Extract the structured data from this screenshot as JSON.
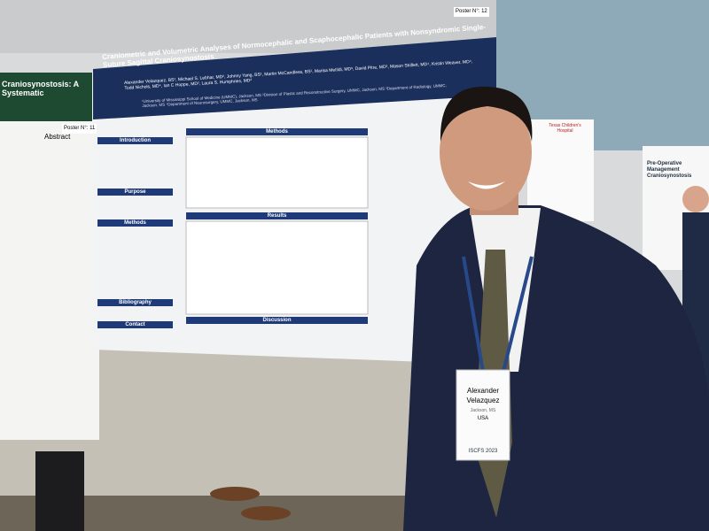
{
  "posters": {
    "center": {
      "number": "Poster N°: 12",
      "title": "Craniometric and Volumetric Analyses of Normocephalic and Scaphocephalic Patients with Nonsyndromic Single-Suture Sagittal Craniosynostosis",
      "authors": "Alexander Velazquez, BS¹, Michael S. Lebhar, MD², Johnny Yang, BS¹, Martin McCandless, BS¹, Marisa Metildi, MD³, David Pitre, MD³, Mason Shiflett, MD⁴, Kristin Weaver, MD⁴, Todd Nichols, MD⁴, Ian C Hoppe, MD², Laura S. Humphries, MD²",
      "affiliations": "¹University of Mississippi School of Medicine (UMMC), Jackson, MS  ²Division of Plastic and Reconstructive Surgery, UMMC, Jackson, MS  ³Department of Radiology, UMMC, Jackson, MS  ⁴Department of Neurosurgery, UMMC, Jackson, MS",
      "sections": [
        "Introduction",
        "Purpose",
        "Methods",
        "Bibliography",
        "Contact",
        "Methods",
        "Results",
        "Discussion"
      ]
    },
    "left": {
      "number": "Poster N°: 11",
      "title": "Craniosynostosis: A Systematic",
      "heading": "Abstract"
    },
    "right": {
      "hospital": "Texas Children's Hospital",
      "title": "Pre-Operative Management Craniosynostosis"
    }
  },
  "badge": {
    "first_name": "Alexander",
    "last_name": "Velazquez",
    "city": "Jackson, MS",
    "country": "USA",
    "event": "ISCFS 2023"
  }
}
